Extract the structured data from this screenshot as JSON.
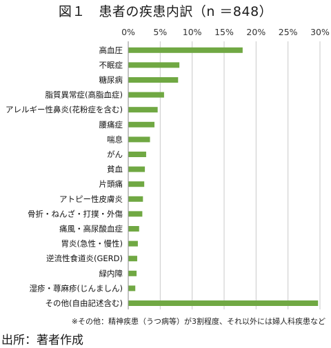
{
  "title": "図１　患者の疾患内訳（n ＝848）",
  "note": "※その他：精神疾患（うつ病等）が3割程度、それ以外には婦人科疾患など",
  "source": "出所：著者作成",
  "chart_data": {
    "type": "bar",
    "orientation": "horizontal",
    "title": "図１　患者の疾患内訳（n ＝848）",
    "xlabel": "",
    "ylabel": "",
    "xlim": [
      0,
      30
    ],
    "xticks": [
      "0%",
      "5%",
      "10%",
      "15%",
      "20%",
      "25%",
      "30%"
    ],
    "tick_values": [
      0,
      5,
      10,
      15,
      20,
      25,
      30
    ],
    "grid": true,
    "bar_color": "#70a843",
    "categories": [
      "高血圧",
      "不眠症",
      "糖尿病",
      "脂質異常症(高脂血症)",
      "アレルギー性鼻炎(花粉症を含む)",
      "腰痛症",
      "喘息",
      "がん",
      "貧血",
      "片頭痛",
      "アトピー性皮膚炎",
      "骨折・ねんざ・打撲・外傷",
      "痛風・高尿酸血症",
      "胃炎(急性・慢性)",
      "逆流性食道炎(GERD)",
      "緑内障",
      "湿疹・蕁麻疹(じんましん)",
      "その他(自由記述含む)"
    ],
    "values": [
      17.9,
      8.0,
      7.8,
      5.6,
      4.6,
      4.1,
      3.4,
      2.8,
      2.6,
      2.5,
      2.3,
      2.2,
      1.7,
      1.5,
      1.4,
      1.3,
      1.1,
      29.7
    ]
  }
}
